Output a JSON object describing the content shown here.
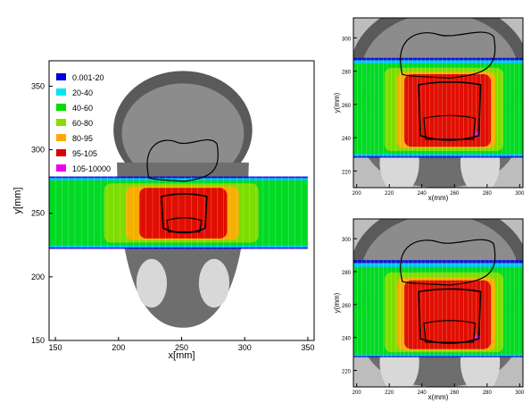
{
  "chart_data": [
    {
      "type": "heatmap",
      "panel": "main",
      "xlabel": "x[mm]",
      "ylabel": "y[mm]",
      "xlim": [
        145,
        355
      ],
      "ylim": [
        150,
        370
      ],
      "xticks": [
        150,
        200,
        250,
        300,
        350
      ],
      "yticks": [
        150,
        200,
        250,
        300,
        350
      ],
      "legend": {
        "placement": "top-left",
        "entries": [
          {
            "label": "0.001-20",
            "color": "#0000dd"
          },
          {
            "label": "20-40",
            "color": "#00e5ee"
          },
          {
            "label": "40-60",
            "color": "#00dd00"
          },
          {
            "label": "60-80",
            "color": "#88dd00"
          },
          {
            "label": "80-95",
            "color": "#ffaa00"
          },
          {
            "label": "95-105",
            "color": "#dd0000"
          },
          {
            "label": "105-10000",
            "color": "#ee00ee"
          }
        ]
      },
      "dose_band": {
        "x": [
          145,
          350
        ],
        "y": [
          222,
          279
        ]
      },
      "high_dose_region": {
        "x": [
          232,
          272
        ],
        "y": [
          232,
          268
        ]
      }
    },
    {
      "type": "heatmap",
      "panel": "top-right",
      "xlabel": "x(mm)",
      "ylabel": "y(mm)",
      "xlim": [
        198,
        302
      ],
      "ylim": [
        210,
        312
      ],
      "xticks": [
        200,
        220,
        240,
        260,
        280,
        300
      ],
      "yticks": [
        220,
        240,
        260,
        280,
        300
      ],
      "dose_band": {
        "x": [
          198,
          302
        ],
        "y": [
          228,
          288
        ]
      },
      "high_dose_region": {
        "x": [
          236,
          278
        ],
        "y": [
          236,
          276
        ]
      }
    },
    {
      "type": "heatmap",
      "panel": "bottom-right",
      "xlabel": "x(mm)",
      "ylabel": "y(mm)",
      "xlim": [
        198,
        302
      ],
      "ylim": [
        210,
        312
      ],
      "xticks": [
        200,
        220,
        240,
        260,
        280,
        300
      ],
      "yticks": [
        220,
        240,
        260,
        280,
        300
      ],
      "dose_band": {
        "x": [
          198,
          302
        ],
        "y": [
          228,
          287
        ]
      },
      "high_dose_region": {
        "x": [
          236,
          278
        ],
        "y": [
          234,
          272
        ]
      }
    }
  ]
}
